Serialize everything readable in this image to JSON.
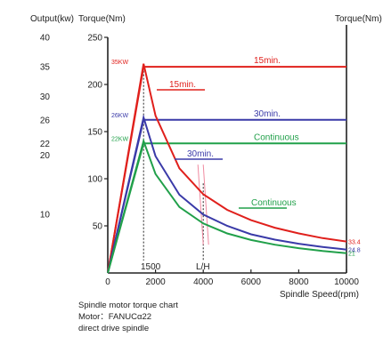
{
  "chart_data": {
    "type": "line",
    "y_left_output_label": "Output(kw)",
    "y_left_torque_label": "Torque(Nm)",
    "y_right_label": "Torque(Nm)",
    "xlabel": "Spindle Speed(rpm)",
    "xlim": [
      0,
      10000
    ],
    "torque_ylim": [
      0,
      250
    ],
    "output_ylim": [
      0,
      40
    ],
    "x_ticks": [
      "0",
      "2000",
      "4000",
      "6000",
      "8000",
      "10000"
    ],
    "torque_ticks": [
      "50",
      "100",
      "150",
      "200",
      "250"
    ],
    "output_ticks": [
      "10",
      "20",
      "22",
      "26",
      "30",
      "35",
      "40"
    ],
    "base_speed_label": "1500",
    "lh_label": "L/H",
    "series": [
      {
        "name": "15min.",
        "kind": "output",
        "kw_label": "35KW",
        "color": "#e0201c",
        "points": [
          [
            0,
            0
          ],
          [
            1500,
            35
          ],
          [
            10000,
            35
          ]
        ]
      },
      {
        "name": "30min.",
        "kind": "output",
        "kw_label": "26KW",
        "color": "#3a3aa8",
        "points": [
          [
            0,
            0
          ],
          [
            1500,
            26
          ],
          [
            10000,
            26
          ]
        ]
      },
      {
        "name": "Continuous",
        "kind": "output",
        "kw_label": "22KW",
        "color": "#21a04a",
        "points": [
          [
            0,
            0
          ],
          [
            1500,
            22
          ],
          [
            10000,
            22
          ]
        ]
      },
      {
        "name": "15min.",
        "kind": "torque",
        "end_label": "33.4",
        "color": "#e0201c",
        "points": [
          [
            0,
            0
          ],
          [
            1500,
            222
          ],
          [
            2000,
            167
          ],
          [
            3000,
            111
          ],
          [
            4000,
            83.5
          ],
          [
            5000,
            67
          ],
          [
            6000,
            56
          ],
          [
            7000,
            48
          ],
          [
            8000,
            42
          ],
          [
            9000,
            37
          ],
          [
            10000,
            33.4
          ]
        ]
      },
      {
        "name": "30min.",
        "kind": "torque",
        "end_label": "24.8",
        "color": "#3a3aa8",
        "points": [
          [
            0,
            0
          ],
          [
            1500,
            165
          ],
          [
            2000,
            124
          ],
          [
            3000,
            83
          ],
          [
            4000,
            62
          ],
          [
            5000,
            50
          ],
          [
            6000,
            41
          ],
          [
            7000,
            35.4
          ],
          [
            8000,
            31
          ],
          [
            9000,
            27.6
          ],
          [
            10000,
            24.8
          ]
        ]
      },
      {
        "name": "Continuous",
        "kind": "torque",
        "end_label": "21",
        "color": "#21a04a",
        "points": [
          [
            0,
            0
          ],
          [
            1500,
            140
          ],
          [
            2000,
            105
          ],
          [
            3000,
            70
          ],
          [
            4000,
            52.5
          ],
          [
            5000,
            42
          ],
          [
            6000,
            35
          ],
          [
            7000,
            30
          ],
          [
            8000,
            26.3
          ],
          [
            9000,
            23.3
          ],
          [
            10000,
            21
          ]
        ]
      }
    ]
  },
  "caption": {
    "title": "Spindle motor torque chart",
    "motor": "Motor：FANUCα22",
    "spindle": "direct drive spindle"
  }
}
